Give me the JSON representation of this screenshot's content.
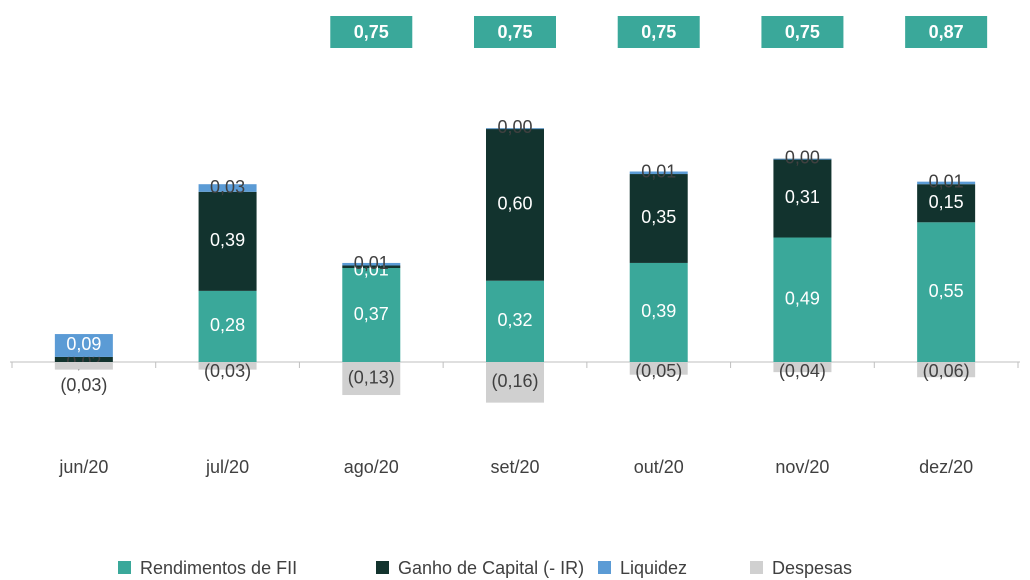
{
  "chart_data": {
    "type": "bar",
    "stacked": true,
    "categories": [
      "jun/20",
      "jul/20",
      "ago/20",
      "set/20",
      "out/20",
      "nov/20",
      "dez/20"
    ],
    "series": [
      {
        "name": "Rendimentos de FII",
        "color": "#3aa89a",
        "values": [
          null,
          0.28,
          0.37,
          0.32,
          0.39,
          0.49,
          0.55
        ],
        "value_labels": [
          null,
          "0,28",
          "0,37",
          "0,32",
          "0,39",
          "0,49",
          "0,55"
        ]
      },
      {
        "name": "Ganho de Capital (- IR)",
        "color": "#12332e",
        "values": [
          0.02,
          0.39,
          0.01,
          0.6,
          0.35,
          0.31,
          0.15
        ],
        "value_labels": [
          "0,02",
          "0,39",
          "0,01",
          "0,60",
          "0,35",
          "0,31",
          "0,15"
        ]
      },
      {
        "name": "Liquidez",
        "color": "#5b9bd5",
        "values": [
          0.09,
          0.03,
          0.01,
          0.0,
          0.01,
          0.0,
          0.01
        ],
        "value_labels": [
          "0,09",
          "0,03",
          "0,01",
          "0,00",
          "0,01",
          "0,00",
          "0,01"
        ]
      },
      {
        "name": "Despesas",
        "color": "#d0d0d0",
        "values": [
          -0.03,
          -0.03,
          -0.13,
          -0.16,
          -0.05,
          -0.04,
          -0.06
        ],
        "value_labels": [
          "(0,03)",
          "(0,03)",
          "(0,13)",
          "(0,16)",
          "(0,05)",
          "(0,04)",
          "(0,06)"
        ]
      }
    ],
    "totals": {
      "color": "#3aa89a",
      "values": [
        null,
        null,
        0.75,
        0.75,
        0.75,
        0.75,
        0.87
      ],
      "value_labels": [
        null,
        null,
        "0,75",
        "0,75",
        "0,75",
        "0,75",
        "0,87"
      ]
    }
  }
}
